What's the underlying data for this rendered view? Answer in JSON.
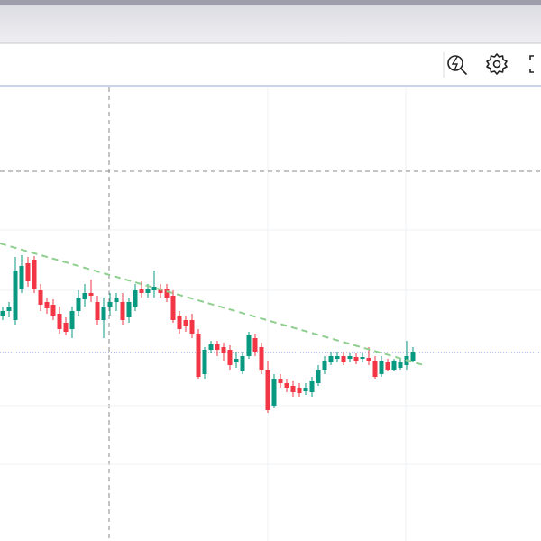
{
  "chart_data": {
    "type": "candlestick",
    "ylim": [
      0,
      500
    ],
    "up_color": "#089981",
    "down_color": "#f23645",
    "open": [
      250,
      255,
      245,
      280,
      308,
      312,
      278,
      265,
      262,
      252,
      242,
      235,
      255,
      268,
      275,
      265,
      245,
      260,
      265,
      265,
      248,
      260,
      280,
      275,
      278,
      280,
      280,
      272,
      250,
      245,
      245,
      230,
      185,
      212,
      218,
      215,
      212,
      198,
      188,
      205,
      225,
      215,
      190,
      150,
      180,
      175,
      172,
      170,
      166,
      165,
      175,
      190,
      198,
      202,
      205,
      202,
      204,
      202,
      203,
      200,
      185,
      198,
      190,
      192,
      195,
      200
    ],
    "high": [
      260,
      265,
      315,
      317,
      315,
      316,
      285,
      270,
      268,
      260,
      248,
      260,
      278,
      285,
      290,
      272,
      270,
      275,
      275,
      275,
      270,
      285,
      288,
      285,
      300,
      285,
      285,
      278,
      255,
      250,
      252,
      235,
      215,
      222,
      222,
      220,
      217,
      210,
      210,
      232,
      230,
      220,
      200,
      185,
      185,
      180,
      178,
      175,
      175,
      182,
      195,
      205,
      210,
      210,
      210,
      208,
      208,
      208,
      215,
      205,
      205,
      202,
      202,
      202,
      222,
      215
    ],
    "low": [
      245,
      248,
      240,
      275,
      282,
      275,
      255,
      252,
      245,
      230,
      228,
      225,
      250,
      260,
      265,
      240,
      225,
      250,
      255,
      240,
      242,
      255,
      270,
      270,
      270,
      270,
      265,
      242,
      230,
      232,
      225,
      180,
      180,
      208,
      205,
      200,
      190,
      192,
      185,
      202,
      205,
      185,
      142,
      148,
      170,
      165,
      160,
      160,
      162,
      160,
      172,
      185,
      195,
      198,
      195,
      198,
      196,
      198,
      195,
      180,
      182,
      188,
      188,
      190,
      190,
      198
    ],
    "close": [
      255,
      260,
      300,
      305,
      288,
      280,
      262,
      258,
      250,
      235,
      232,
      255,
      270,
      275,
      272,
      245,
      260,
      265,
      270,
      245,
      265,
      278,
      275,
      280,
      282,
      275,
      270,
      245,
      235,
      238,
      230,
      182,
      212,
      218,
      212,
      208,
      195,
      202,
      205,
      228,
      210,
      190,
      145,
      180,
      175,
      170,
      165,
      164,
      170,
      178,
      190,
      200,
      205,
      205,
      198,
      205,
      200,
      204,
      200,
      182,
      200,
      190,
      200,
      198,
      205,
      210
    ],
    "trendline": {
      "color": "#8fcf8f",
      "values": [
        330,
        195
      ]
    },
    "price_line": {
      "color": "#5b6fc9",
      "value": 209
    },
    "crosshair": {
      "color": "#8a8a8a",
      "value": 410
    },
    "gridlines": [
      345,
      278,
      150,
      85
    ]
  }
}
